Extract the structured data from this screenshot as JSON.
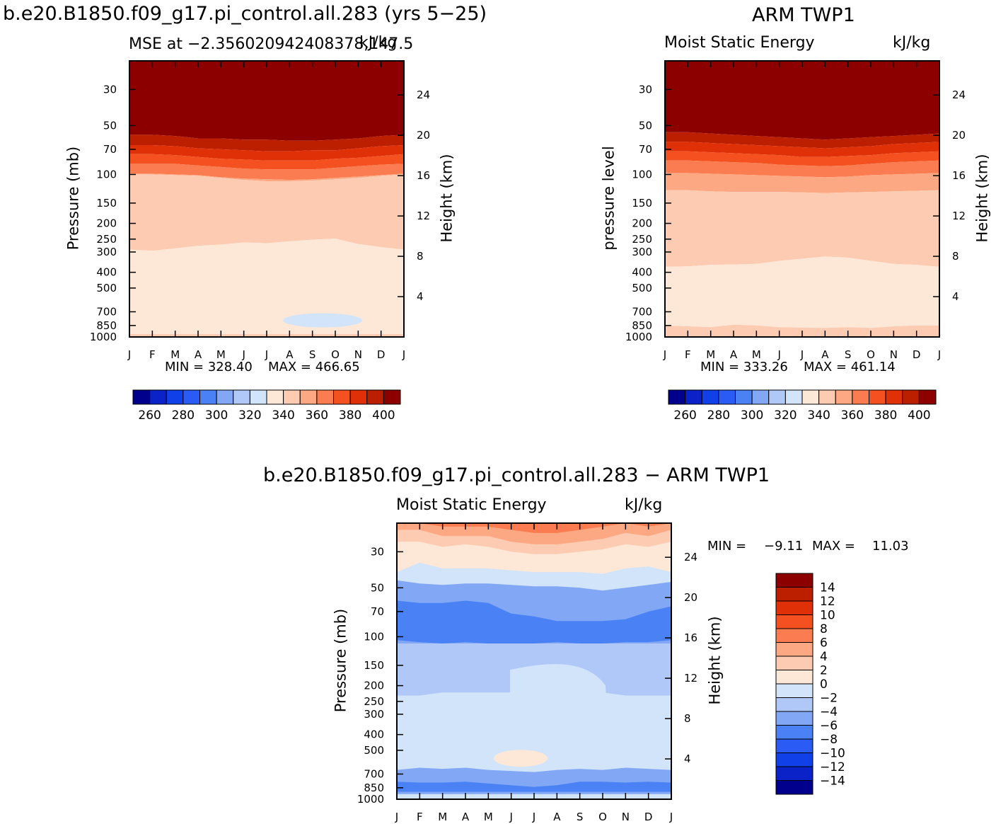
{
  "page_title_left": "b.e20.B1850.f09_g17.pi_control.all.283 (yrs 5−25)",
  "page_title_right": "ARM TWP1",
  "page_title_diff": "b.e20.B1850.f09_g17.pi_control.all.283 − ARM TWP1",
  "colors": {
    "abs_scale": [
      "#00008c",
      "#0a22c8",
      "#1040e8",
      "#2a5cf5",
      "#4a82f5",
      "#82a8f5",
      "#b0c8f8",
      "#d2e4fa",
      "#fde8d8",
      "#fdcbb2",
      "#fca882",
      "#fa7c50",
      "#f45020",
      "#e03008",
      "#bc1e00",
      "#8c0000"
    ],
    "diff_scale": [
      "#00008c",
      "#0a22c8",
      "#1040e8",
      "#2a5cf5",
      "#4a82f5",
      "#82a8f5",
      "#b0c8f8",
      "#d2e4fa",
      "#fde8d8",
      "#fdcbb2",
      "#fca882",
      "#fa7c50",
      "#f45020",
      "#e03008",
      "#bc1e00",
      "#8c0000"
    ]
  },
  "months": [
    "J",
    "F",
    "M",
    "A",
    "M",
    "J",
    "J",
    "A",
    "S",
    "O",
    "N",
    "D",
    "J"
  ],
  "pressure_ticks": [
    "30",
    "50",
    "70",
    "100",
    "150",
    "200",
    "250",
    "300",
    "400",
    "500",
    "700",
    "850",
    "1000"
  ],
  "height_ticks": [
    "24",
    "20",
    "16",
    "12",
    "8",
    "4"
  ],
  "abs_colorbar_labels": [
    "260",
    "280",
    "300",
    "320",
    "340",
    "360",
    "380",
    "400"
  ],
  "diff_colorbar_labels": [
    "14",
    "12",
    "10",
    "8",
    "6",
    "4",
    "2",
    "0",
    "−2",
    "−4",
    "−6",
    "−8",
    "−10",
    "−12",
    "−14"
  ],
  "chart_data": [
    {
      "type": "heatmap",
      "panel": "model",
      "title": "MSE at −2.356020942408378,147.5",
      "units": "kJ/kg",
      "xlabel": "",
      "ylabel": "Pressure (mb)",
      "ylabel_right": "Height (km)",
      "min_label": "MIN = 328.40",
      "max_label": "MAX = 466.65",
      "min": 328.4,
      "max": 466.65,
      "x_categories": [
        "J",
        "F",
        "M",
        "A",
        "M",
        "J",
        "J",
        "A",
        "S",
        "O",
        "N",
        "D",
        "J"
      ],
      "contour_interval": 10,
      "approx_contour_pressure_mb": {
        "400": [
          57,
          57,
          58,
          60,
          60,
          61,
          61,
          62,
          62,
          61,
          60,
          58,
          57
        ],
        "380": [
          66,
          66,
          67,
          69,
          70,
          71,
          72,
          72,
          71,
          71,
          69,
          67,
          66
        ],
        "370": [
          75,
          75,
          76,
          78,
          80,
          81,
          82,
          82,
          82,
          80,
          79,
          77,
          75
        ],
        "360": [
          86,
          86,
          86,
          88,
          90,
          92,
          93,
          93,
          93,
          91,
          89,
          87,
          86
        ],
        "350": [
          99,
          99,
          100,
          101,
          104,
          106,
          107,
          108,
          107,
          105,
          103,
          101,
          99
        ],
        "340": [
          290,
          295,
          285,
          275,
          270,
          262,
          265,
          258,
          252,
          248,
          268,
          280,
          290
        ],
        "320_patch": "near 800 mb, Aug–Oct"
      }
    },
    {
      "type": "heatmap",
      "panel": "observation",
      "title": "Moist Static Energy",
      "units": "kJ/kg",
      "ylabel": "pressure level",
      "ylabel_right": "Height (km)",
      "min_label": "MIN = 333.26",
      "max_label": "MAX = 461.14",
      "min": 333.26,
      "max": 461.14,
      "x_categories": [
        "J",
        "F",
        "M",
        "A",
        "M",
        "J",
        "J",
        "A",
        "S",
        "O",
        "N",
        "D",
        "J"
      ],
      "contour_interval": 10,
      "approx_contour_pressure_mb": {
        "400": [
          55,
          55,
          56,
          57,
          58,
          59,
          60,
          61,
          60,
          59,
          58,
          57,
          56
        ],
        "380": [
          63,
          63,
          64,
          65,
          66,
          67,
          68,
          69,
          68,
          67,
          65,
          64,
          63
        ],
        "370": [
          72,
          72,
          73,
          74,
          75,
          76,
          78,
          78,
          77,
          76,
          74,
          73,
          72
        ],
        "360": [
          82,
          82,
          83,
          84,
          85,
          87,
          88,
          89,
          88,
          86,
          84,
          83,
          82
        ],
        "350": [
          98,
          98,
          99,
          100,
          101,
          102,
          103,
          104,
          103,
          101,
          100,
          99,
          98
        ],
        "340": [
          370,
          368,
          360,
          358,
          355,
          340,
          330,
          320,
          325,
          340,
          355,
          360,
          370
        ],
        "330": [
          850,
          860,
          870,
          840,
          850,
          870,
          875,
          880,
          870,
          880,
          860,
          850,
          850
        ]
      }
    },
    {
      "type": "heatmap",
      "panel": "difference",
      "title": "Moist Static Energy",
      "units": "kJ/kg",
      "ylabel": "Pressure (mb)",
      "ylabel_right": "Height (km)",
      "min_label": "MIN =",
      "min_value": "−9.11",
      "max_label": "MAX =",
      "max_value": "11.03",
      "min": -9.11,
      "max": 11.03,
      "x_categories": [
        "J",
        "F",
        "M",
        "A",
        "M",
        "J",
        "J",
        "A",
        "S",
        "O",
        "N",
        "D",
        "J"
      ],
      "contour_interval": 2
    }
  ]
}
